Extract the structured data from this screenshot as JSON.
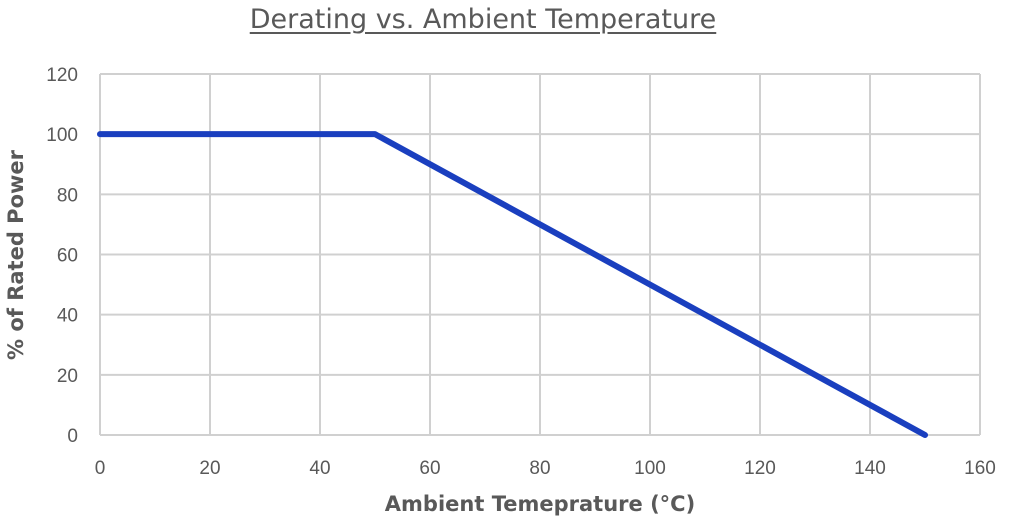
{
  "chart_data": {
    "type": "line",
    "title": "Derating vs. Ambient Temperature",
    "xlabel": "Ambient Temepra­ture (°C)",
    "ylabel": "% of Rated Power",
    "xlim": [
      0,
      160
    ],
    "ylim": [
      0,
      120
    ],
    "x_ticks": [
      0,
      20,
      40,
      60,
      80,
      100,
      120,
      140,
      160
    ],
    "y_ticks": [
      0,
      20,
      40,
      60,
      80,
      100,
      120
    ],
    "grid": true,
    "series": [
      {
        "x": [
          0,
          50,
          150
        ],
        "y": [
          100,
          100,
          0
        ],
        "color": "#1a3fbf"
      }
    ]
  }
}
